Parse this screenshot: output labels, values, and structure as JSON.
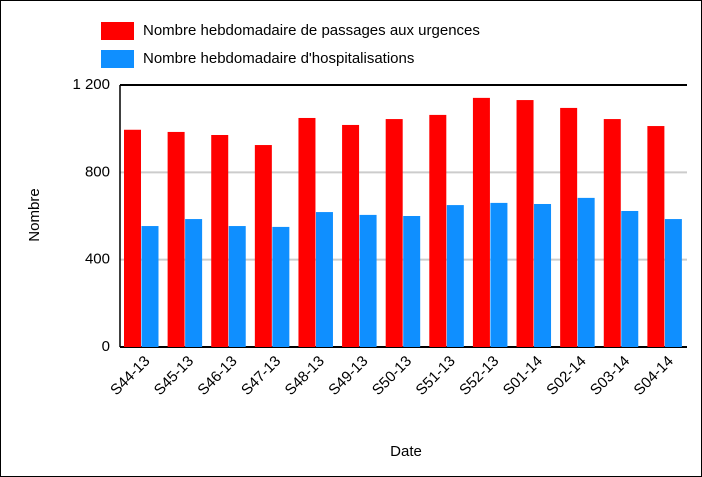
{
  "chart_data": {
    "type": "bar",
    "categories": [
      "S44-13",
      "S45-13",
      "S46-13",
      "S47-13",
      "S48-13",
      "S49-13",
      "S50-13",
      "S51-13",
      "S52-13",
      "S01-14",
      "S02-14",
      "S03-14",
      "S04-14"
    ],
    "series": [
      {
        "name": "Nombre hebdomadaire de passages aux urgences",
        "color": "#ff0000",
        "values": [
          995,
          985,
          971,
          925,
          1049,
          1017,
          1044,
          1063,
          1141,
          1131,
          1095,
          1044,
          1012
        ]
      },
      {
        "name": "Nombre hebdomadaire d'hospitalisations",
        "color": "#0f8fff",
        "values": [
          554,
          586,
          554,
          550,
          618,
          605,
          600,
          650,
          660,
          655,
          683,
          623,
          586
        ]
      }
    ],
    "x_label": "Date",
    "y_label": "Nombre",
    "ylim": [
      0,
      1200
    ],
    "yticks": [
      0,
      400,
      800,
      {
        "value": 1200,
        "label": "1 200"
      }
    ],
    "grid": true
  }
}
